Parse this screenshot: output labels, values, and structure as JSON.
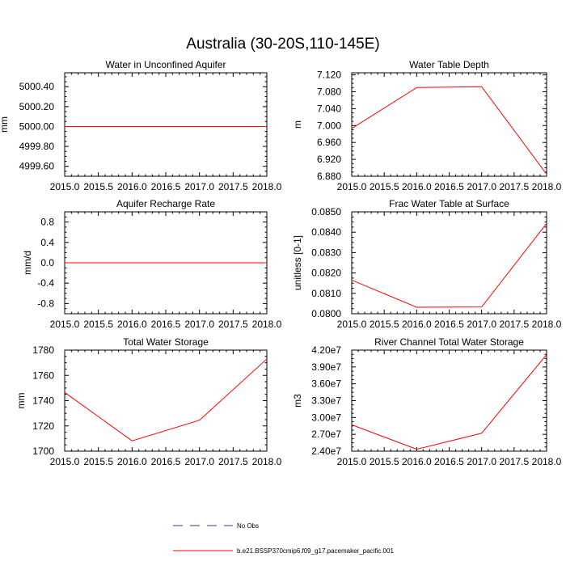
{
  "figure": {
    "title": "Australia (30-20S,110-145E)"
  },
  "legend": {
    "entries": [
      {
        "label": "No Obs",
        "color": "#3a3a8c",
        "style": "dashed"
      },
      {
        "label": "b.e21.BSSP370cmip6.f09_g17.pacemaker_pacific.001",
        "color": "#ff0000",
        "style": "solid"
      }
    ]
  },
  "chart_data": [
    {
      "type": "line",
      "title": "Water in Unconfined Aquifer",
      "xlabel": "",
      "ylabel": "mm",
      "xlim": [
        2015.0,
        2018.0
      ],
      "ylim": [
        4999.5,
        5000.54
      ],
      "x_ticks": [
        "2015.0",
        "2015.5",
        "2016.0",
        "2016.5",
        "2017.0",
        "2017.5",
        "2018.0"
      ],
      "y_ticks": [
        "4999.60",
        "4999.80",
        "5000.00",
        "5000.20",
        "5000.40"
      ],
      "series": [
        {
          "color": "#ff0000",
          "x": [
            2015,
            2016,
            2017,
            2018
          ],
          "y": [
            5000.0,
            5000.0,
            5000.0,
            5000.0
          ]
        }
      ]
    },
    {
      "type": "line",
      "title": "Water Table Depth",
      "xlabel": "",
      "ylabel": "m",
      "xlim": [
        2015.0,
        2018.0
      ],
      "ylim": [
        6.88,
        7.125
      ],
      "x_ticks": [
        "2015.0",
        "2015.5",
        "2016.0",
        "2016.5",
        "2017.0",
        "2017.5",
        "2018.0"
      ],
      "y_ticks": [
        "6.880",
        "6.920",
        "6.960",
        "7.000",
        "7.040",
        "7.080",
        "7.120"
      ],
      "series": [
        {
          "color": "#ff0000",
          "x": [
            2015,
            2016,
            2017,
            2018
          ],
          "y": [
            6.993,
            7.09,
            7.092,
            6.885
          ]
        }
      ]
    },
    {
      "type": "line",
      "title": "Aquifer Recharge Rate",
      "xlabel": "",
      "ylabel": "mm/d",
      "xlim": [
        2015.0,
        2018.0
      ],
      "ylim": [
        -1.0,
        1.0
      ],
      "x_ticks": [
        "2015.0",
        "2015.5",
        "2016.0",
        "2016.5",
        "2017.0",
        "2017.5",
        "2018.0"
      ],
      "y_ticks": [
        "-0.8",
        "-0.4",
        "0.0",
        "0.4",
        "0.8"
      ],
      "series": [
        {
          "color": "#ff0000",
          "x": [
            2015,
            2016,
            2017,
            2018
          ],
          "y": [
            0.0,
            0.0,
            0.0,
            0.0
          ]
        }
      ]
    },
    {
      "type": "line",
      "title": "Frac Water Table at Surface",
      "xlabel": "",
      "ylabel": "unitless [0-1]",
      "xlim": [
        2015.0,
        2018.0
      ],
      "ylim": [
        0.08,
        0.085
      ],
      "x_ticks": [
        "2015.0",
        "2015.5",
        "2016.0",
        "2016.5",
        "2017.0",
        "2017.5",
        "2018.0"
      ],
      "y_ticks": [
        "0.0800",
        "0.0810",
        "0.0820",
        "0.0830",
        "0.0840",
        "0.0850"
      ],
      "series": [
        {
          "color": "#ff0000",
          "x": [
            2015,
            2016,
            2017,
            2018
          ],
          "y": [
            0.08165,
            0.08032,
            0.08033,
            0.08443
          ]
        }
      ]
    },
    {
      "type": "line",
      "title": "Total Water Storage",
      "xlabel": "",
      "ylabel": "mm",
      "xlim": [
        2015.0,
        2018.0
      ],
      "ylim": [
        1700,
        1780
      ],
      "x_ticks": [
        "2015.0",
        "2015.5",
        "2016.0",
        "2016.5",
        "2017.0",
        "2017.5",
        "2018.0"
      ],
      "y_ticks": [
        "1700",
        "1720",
        "1740",
        "1760",
        "1780"
      ],
      "series": [
        {
          "color": "#ff0000",
          "x": [
            2015,
            2016,
            2017,
            2018
          ],
          "y": [
            1746.5,
            1708.2,
            1724.5,
            1773.0
          ]
        }
      ]
    },
    {
      "type": "line",
      "title": "River Channel Total Water Storage",
      "xlabel": "",
      "ylabel": "m3",
      "xlim": [
        2015.0,
        2018.0
      ],
      "ylim": [
        24000000,
        42000000
      ],
      "x_ticks": [
        "2015.0",
        "2015.5",
        "2016.0",
        "2016.5",
        "2017.0",
        "2017.5",
        "2018.0"
      ],
      "y_ticks": [
        "2.40e7",
        "2.70e7",
        "3.00e7",
        "3.30e7",
        "3.60e7",
        "3.90e7",
        "4.20e7"
      ],
      "series": [
        {
          "color": "#ff0000",
          "x": [
            2015,
            2016,
            2017,
            2018
          ],
          "y": [
            28700000,
            24350000,
            27200000,
            41200000
          ]
        }
      ]
    }
  ]
}
